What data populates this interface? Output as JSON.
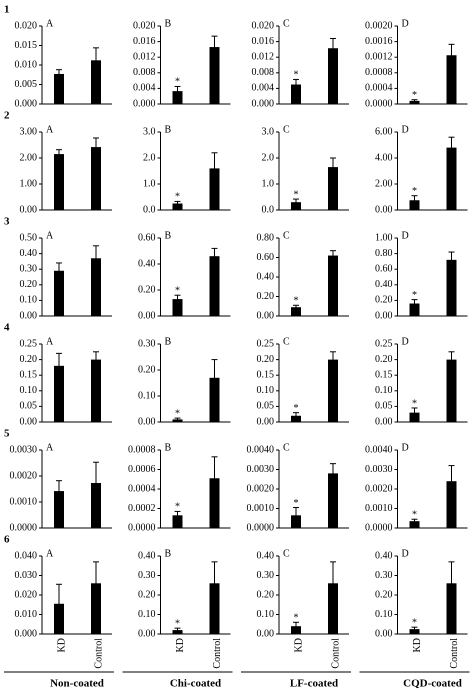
{
  "chart_data": [
    {
      "type": "bar",
      "label": "1",
      "panel": "A",
      "categories": [
        null,
        null
      ],
      "values": [
        0.0077,
        0.0112
      ],
      "errors": [
        0.0011,
        0.0032
      ],
      "ylim": [
        0,
        0.02
      ],
      "yticks": [
        {
          "value": 0,
          "label": "0.000"
        },
        0.005,
        {
          "value": 0.01,
          "label": "0.010"
        },
        0.015,
        {
          "value": 0.02,
          "label": "0.020"
        }
      ],
      "color": "#000000"
    },
    {
      "type": "bar",
      "panel": "B",
      "categories": [
        null,
        null
      ],
      "values": [
        0.0033,
        0.0146
      ],
      "errors": [
        0.0012,
        0.0028
      ],
      "annotation": "*",
      "ylim": [
        0,
        0.02
      ],
      "yticks": [
        {
          "value": 0,
          "label": "0.000"
        },
        0.004,
        0.008,
        0.012,
        0.016,
        {
          "value": 0.02,
          "label": "0.020"
        }
      ],
      "color": "#000000"
    },
    {
      "type": "bar",
      "panel": "C",
      "categories": [
        null,
        null
      ],
      "values": [
        0.005,
        0.0143
      ],
      "errors": [
        0.0013,
        0.0025
      ],
      "annotation": "*",
      "ylim": [
        0,
        0.02
      ],
      "yticks": [
        {
          "value": 0,
          "label": "0.000"
        },
        0.004,
        0.008,
        0.012,
        0.016,
        {
          "value": 0.02,
          "label": "0.020"
        }
      ],
      "color": "#000000"
    },
    {
      "type": "bar",
      "panel": "D",
      "categories": [
        null,
        null
      ],
      "values": [
        8e-05,
        0.00125
      ],
      "errors": [
        3e-05,
        0.00028
      ],
      "annotation": "*",
      "ylim": [
        0,
        0.002
      ],
      "yticks": [
        {
          "value": 0,
          "label": "0.0000"
        },
        0.0004,
        0.0008,
        0.0012,
        0.0016,
        {
          "value": 0.002,
          "label": "0.0020"
        }
      ],
      "color": "#000000"
    },
    {
      "type": "bar",
      "label": "2",
      "panel": "A",
      "categories": [
        null,
        null
      ],
      "values": [
        2.15,
        2.42
      ],
      "errors": [
        0.17,
        0.35
      ],
      "ylim": [
        0,
        3
      ],
      "yticks": [
        {
          "value": 0,
          "label": "0.00"
        },
        {
          "value": 1,
          "label": "1.00"
        },
        {
          "value": 2,
          "label": "2.00"
        },
        {
          "value": 3,
          "label": "3.00"
        }
      ],
      "color": "#000000"
    },
    {
      "type": "bar",
      "panel": "B",
      "categories": [
        null,
        null
      ],
      "values": [
        0.25,
        1.6
      ],
      "errors": [
        0.08,
        0.6
      ],
      "annotation": "*",
      "ylim": [
        0,
        3
      ],
      "yticks": [
        {
          "value": 0,
          "label": "0.0"
        },
        {
          "value": 1,
          "label": "1.0"
        },
        {
          "value": 2,
          "label": "2.0"
        },
        {
          "value": 3,
          "label": "3.0"
        }
      ],
      "color": "#000000"
    },
    {
      "type": "bar",
      "panel": "C",
      "categories": [
        null,
        null
      ],
      "values": [
        0.3,
        1.65
      ],
      "errors": [
        0.12,
        0.35
      ],
      "annotation": "*",
      "ylim": [
        0,
        3
      ],
      "yticks": [
        {
          "value": 0,
          "label": "0.0"
        },
        {
          "value": 1,
          "label": "1.0"
        },
        {
          "value": 2,
          "label": "2.0"
        },
        {
          "value": 3,
          "label": "3.0"
        }
      ],
      "color": "#000000"
    },
    {
      "type": "bar",
      "panel": "D",
      "categories": [
        null,
        null
      ],
      "values": [
        0.75,
        4.8
      ],
      "errors": [
        0.35,
        0.8
      ],
      "annotation": "*",
      "ylim": [
        0,
        6
      ],
      "yticks": [
        {
          "value": 0,
          "label": "0.00"
        },
        {
          "value": 2,
          "label": "2.00"
        },
        {
          "value": 4,
          "label": "4.00"
        },
        {
          "value": 6,
          "label": "6.00"
        }
      ],
      "color": "#000000"
    },
    {
      "type": "bar",
      "label": "3",
      "panel": "A",
      "categories": [
        null,
        null
      ],
      "values": [
        0.29,
        0.37
      ],
      "errors": [
        0.05,
        0.08
      ],
      "ylim": [
        0,
        0.5
      ],
      "yticks": [
        {
          "value": 0,
          "label": "0.00"
        },
        {
          "value": 0.1,
          "label": "0.10"
        },
        {
          "value": 0.2,
          "label": "0.20"
        },
        {
          "value": 0.3,
          "label": "0.30"
        },
        {
          "value": 0.4,
          "label": "0.40"
        },
        {
          "value": 0.5,
          "label": "0.50"
        }
      ],
      "color": "#000000"
    },
    {
      "type": "bar",
      "panel": "B",
      "categories": [
        null,
        null
      ],
      "values": [
        0.13,
        0.46
      ],
      "errors": [
        0.03,
        0.06
      ],
      "annotation": "*",
      "ylim": [
        0,
        0.6
      ],
      "yticks": [
        {
          "value": 0,
          "label": "0.00"
        },
        {
          "value": 0.2,
          "label": "0.20"
        },
        {
          "value": 0.4,
          "label": "0.40"
        },
        {
          "value": 0.6,
          "label": "0.60"
        }
      ],
      "color": "#000000"
    },
    {
      "type": "bar",
      "panel": "C",
      "categories": [
        null,
        null
      ],
      "values": [
        0.09,
        0.62
      ],
      "errors": [
        0.02,
        0.05
      ],
      "annotation": "*",
      "ylim": [
        0,
        0.8
      ],
      "yticks": [
        {
          "value": 0,
          "label": "0.00"
        },
        {
          "value": 0.2,
          "label": "0.20"
        },
        {
          "value": 0.4,
          "label": "0.40"
        },
        {
          "value": 0.6,
          "label": "0.60"
        },
        {
          "value": 0.8,
          "label": "0.80"
        }
      ],
      "color": "#000000"
    },
    {
      "type": "bar",
      "panel": "D",
      "categories": [
        null,
        null
      ],
      "values": [
        0.16,
        0.72
      ],
      "errors": [
        0.05,
        0.1
      ],
      "annotation": "*",
      "ylim": [
        0,
        1
      ],
      "yticks": [
        {
          "value": 0,
          "label": "0.00"
        },
        {
          "value": 0.2,
          "label": "0.20"
        },
        {
          "value": 0.4,
          "label": "0.40"
        },
        {
          "value": 0.6,
          "label": "0.60"
        },
        {
          "value": 0.8,
          "label": "0.80"
        },
        {
          "value": 1,
          "label": "1.00"
        }
      ],
      "color": "#000000"
    },
    {
      "type": "bar",
      "label": "4",
      "panel": "A",
      "categories": [
        null,
        null
      ],
      "values": [
        0.18,
        0.2
      ],
      "errors": [
        0.04,
        0.025
      ],
      "ylim": [
        0,
        0.25
      ],
      "yticks": [
        {
          "value": 0,
          "label": "0.00"
        },
        0.05,
        {
          "value": 0.1,
          "label": "0.10"
        },
        0.15,
        {
          "value": 0.2,
          "label": "0.20"
        },
        0.25
      ],
      "color": "#000000"
    },
    {
      "type": "bar",
      "panel": "B",
      "categories": [
        null,
        null
      ],
      "values": [
        0.01,
        0.17
      ],
      "errors": [
        0.005,
        0.07
      ],
      "annotation": "*",
      "ylim": [
        0,
        0.3
      ],
      "yticks": [
        {
          "value": 0,
          "label": "0.00"
        },
        {
          "value": 0.1,
          "label": "0.10"
        },
        {
          "value": 0.2,
          "label": "0.20"
        },
        {
          "value": 0.3,
          "label": "0.30"
        }
      ],
      "color": "#000000"
    },
    {
      "type": "bar",
      "panel": "C",
      "categories": [
        null,
        null
      ],
      "values": [
        0.02,
        0.2
      ],
      "errors": [
        0.01,
        0.025
      ],
      "annotation": "*",
      "ylim": [
        0,
        0.25
      ],
      "yticks": [
        {
          "value": 0,
          "label": "0.00"
        },
        0.05,
        {
          "value": 0.1,
          "label": "0.10"
        },
        0.15,
        {
          "value": 0.2,
          "label": "0.20"
        },
        0.25
      ],
      "color": "#000000"
    },
    {
      "type": "bar",
      "panel": "D",
      "categories": [
        null,
        null
      ],
      "values": [
        0.03,
        0.2
      ],
      "errors": [
        0.015,
        0.025
      ],
      "annotation": "*",
      "ylim": [
        0,
        0.25
      ],
      "yticks": [
        {
          "value": 0,
          "label": "0.00"
        },
        0.05,
        {
          "value": 0.1,
          "label": "0.10"
        },
        0.15,
        {
          "value": 0.2,
          "label": "0.20"
        },
        0.25
      ],
      "color": "#000000"
    },
    {
      "type": "bar",
      "label": "5",
      "panel": "A",
      "categories": [
        null,
        null
      ],
      "values": [
        0.00142,
        0.00173
      ],
      "errors": [
        0.0004,
        0.0008
      ],
      "ylim": [
        0,
        0.003
      ],
      "yticks": [
        {
          "value": 0,
          "label": "0.0000"
        },
        {
          "value": 0.001,
          "label": "0.0010"
        },
        {
          "value": 0.002,
          "label": "0.0020"
        },
        {
          "value": 0.003,
          "label": "0.0030"
        }
      ],
      "color": "#000000"
    },
    {
      "type": "bar",
      "panel": "B",
      "categories": [
        null,
        null
      ],
      "values": [
        0.00013,
        0.00051
      ],
      "errors": [
        4e-05,
        0.00022
      ],
      "annotation": "*",
      "ylim": [
        0,
        0.0008
      ],
      "yticks": [
        {
          "value": 0,
          "label": "0.0000"
        },
        0.0002,
        0.0004,
        0.0006,
        0.0008
      ],
      "color": "#000000"
    },
    {
      "type": "bar",
      "panel": "C",
      "categories": [
        null,
        null
      ],
      "values": [
        0.00065,
        0.0028
      ],
      "errors": [
        0.0004,
        0.0005
      ],
      "annotation": "*",
      "ylim": [
        0,
        0.004
      ],
      "yticks": [
        {
          "value": 0,
          "label": "0.0000"
        },
        {
          "value": 0.001,
          "label": "0.0010"
        },
        {
          "value": 0.002,
          "label": "0.0020"
        },
        {
          "value": 0.003,
          "label": "0.0030"
        },
        {
          "value": 0.004,
          "label": "0.0040"
        }
      ],
      "color": "#000000"
    },
    {
      "type": "bar",
      "panel": "D",
      "categories": [
        null,
        null
      ],
      "values": [
        0.00035,
        0.0024
      ],
      "errors": [
        0.0001,
        0.0008
      ],
      "annotation": "*",
      "ylim": [
        0,
        0.004
      ],
      "yticks": [
        {
          "value": 0,
          "label": "0.0000"
        },
        {
          "value": 0.001,
          "label": "0.0010"
        },
        {
          "value": 0.002,
          "label": "0.0020"
        },
        {
          "value": 0.003,
          "label": "0.0030"
        },
        {
          "value": 0.004,
          "label": "0.0040"
        }
      ],
      "color": "#000000"
    },
    {
      "type": "bar",
      "label": "6",
      "panel": "A",
      "categories": [
        "KD",
        "Control"
      ],
      "xlabel": "Non-coated",
      "values": [
        0.0155,
        0.026
      ],
      "errors": [
        0.01,
        0.011
      ],
      "ylim": [
        0,
        0.04
      ],
      "yticks": [
        {
          "value": 0,
          "label": "0.000"
        },
        {
          "value": 0.01,
          "label": "0.010"
        },
        {
          "value": 0.02,
          "label": "0.020"
        },
        {
          "value": 0.03,
          "label": "0.030"
        },
        {
          "value": 0.04,
          "label": "0.040"
        }
      ],
      "color": "#000000"
    },
    {
      "type": "bar",
      "panel": "B",
      "categories": [
        "KD",
        "Control"
      ],
      "xlabel": "Chi-coated",
      "values": [
        0.02,
        0.26
      ],
      "errors": [
        0.01,
        0.11
      ],
      "annotation": "*",
      "ylim": [
        0,
        0.4
      ],
      "yticks": [
        {
          "value": 0,
          "label": "0.00"
        },
        {
          "value": 0.1,
          "label": "0.10"
        },
        {
          "value": 0.2,
          "label": "0.20"
        },
        {
          "value": 0.3,
          "label": "0.30"
        },
        {
          "value": 0.4,
          "label": "0.40"
        }
      ],
      "color": "#000000"
    },
    {
      "type": "bar",
      "panel": "C",
      "categories": [
        "KD",
        "Control"
      ],
      "xlabel": "LF-coated",
      "values": [
        0.04,
        0.26
      ],
      "errors": [
        0.02,
        0.11
      ],
      "annotation": "*",
      "ylim": [
        0,
        0.4
      ],
      "yticks": [
        {
          "value": 0,
          "label": "0.00"
        },
        {
          "value": 0.1,
          "label": "0.10"
        },
        {
          "value": 0.2,
          "label": "0.20"
        },
        {
          "value": 0.3,
          "label": "0.30"
        },
        {
          "value": 0.4,
          "label": "0.40"
        }
      ],
      "color": "#000000"
    },
    {
      "type": "bar",
      "panel": "D",
      "categories": [
        "KD",
        "Control"
      ],
      "xlabel": "CQD-coated",
      "values": [
        0.025,
        0.26
      ],
      "errors": [
        0.01,
        0.11
      ],
      "annotation": "*",
      "ylim": [
        0,
        0.4
      ],
      "yticks": [
        {
          "value": 0,
          "label": "0.00"
        },
        {
          "value": 0.1,
          "label": "0.10"
        },
        {
          "value": 0.2,
          "label": "0.20"
        },
        {
          "value": 0.3,
          "label": "0.30"
        },
        {
          "value": 0.4,
          "label": "0.40"
        }
      ],
      "color": "#000000"
    }
  ]
}
